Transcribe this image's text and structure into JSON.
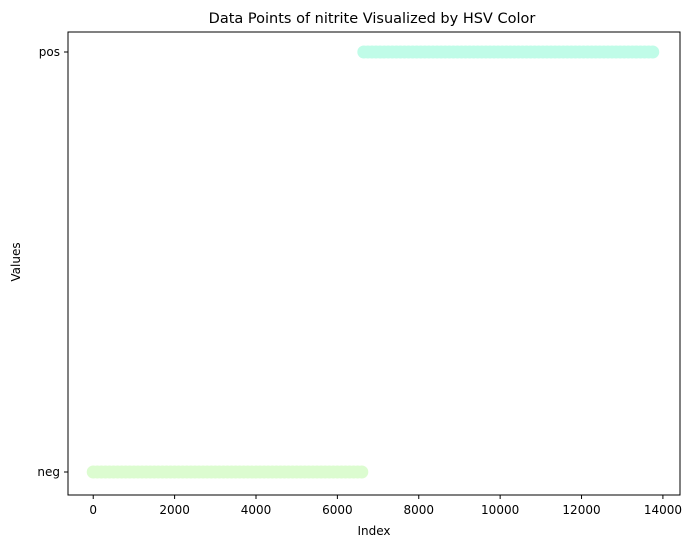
{
  "chart_data": {
    "type": "scatter",
    "title": "Data Points of nitrite Visualized by HSV Color",
    "xlabel": "Index",
    "ylabel": "Values",
    "xlim": [
      -620,
      14420
    ],
    "x_ticks": [
      0,
      2000,
      4000,
      6000,
      8000,
      10000,
      12000,
      14000
    ],
    "x_tick_labels": [
      "0",
      "2000",
      "4000",
      "6000",
      "8000",
      "10000",
      "12000",
      "14000"
    ],
    "y_categories": [
      "neg",
      "pos"
    ],
    "grid": false,
    "series": [
      {
        "category": "neg",
        "x_start": 0,
        "x_end": 6650,
        "color": "#dcfcd0"
      },
      {
        "category": "pos",
        "x_start": 6650,
        "x_end": 13800,
        "color": "#c0fce8"
      }
    ]
  }
}
